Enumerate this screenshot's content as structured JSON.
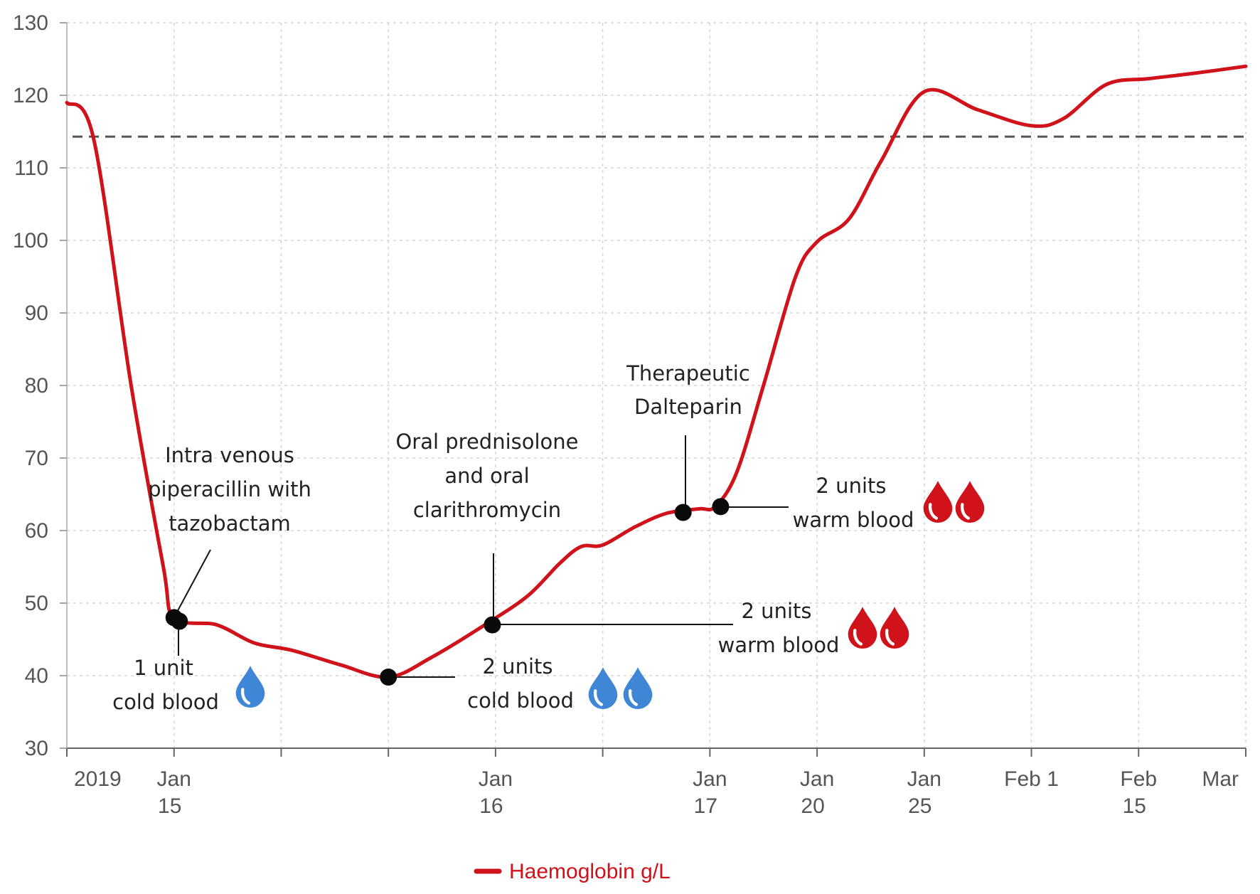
{
  "chart_data": {
    "type": "line",
    "title": "",
    "xlabel": "",
    "ylabel": "",
    "ylim": [
      30,
      130
    ],
    "y_ticks": [
      "130",
      "120",
      "110",
      "100",
      "90",
      "80",
      "70",
      "60",
      "50",
      "40",
      "30"
    ],
    "x_ticks": [
      {
        "line1": "2019",
        "line2": ""
      },
      {
        "line1": "Jan",
        "line2": "15"
      },
      {
        "line1": "",
        "line2": ""
      },
      {
        "line1": "",
        "line2": ""
      },
      {
        "line1": "Jan",
        "line2": "16"
      },
      {
        "line1": "",
        "line2": ""
      },
      {
        "line1": "Jan",
        "line2": "17"
      },
      {
        "line1": "Jan",
        "line2": "20"
      },
      {
        "line1": "Jan",
        "line2": "25"
      },
      {
        "line1": "Feb 1",
        "line2": ""
      },
      {
        "line1": "Feb",
        "line2": "15"
      },
      {
        "line1": "Mar",
        "line2": ""
      }
    ],
    "grid": true,
    "reference_line": {
      "value": 114.3,
      "style": "dashed"
    },
    "series": [
      {
        "name": "Haemoglobin g/L",
        "color": "#d0121b",
        "x": [
          0,
          0.25,
          0.6,
          0.9,
          1.0,
          1.4,
          1.75,
          2.1,
          2.55,
          3.0,
          3.4,
          3.9,
          4.3,
          4.6,
          4.8,
          5.0,
          5.3,
          5.6,
          5.9,
          6.05,
          6.25,
          6.5,
          6.8,
          7.0,
          7.3,
          7.6,
          8.0,
          8.5,
          9.0,
          9.3,
          9.7,
          10.1,
          10.5,
          11.0
        ],
        "values": [
          119,
          114,
          80,
          55,
          48,
          47,
          44.5,
          43.5,
          41.5,
          39.8,
          42.5,
          47,
          51,
          55.5,
          57.8,
          58,
          60.5,
          62.4,
          63,
          63.3,
          68,
          80,
          95,
          99.8,
          103,
          111,
          120.5,
          118,
          115.8,
          116.8,
          121.5,
          122.3,
          123,
          124
        ]
      }
    ],
    "markers": [
      {
        "x": 1.0,
        "y": 48
      },
      {
        "x": 1.05,
        "y": 47.5
      },
      {
        "x": 3.0,
        "y": 39.8
      },
      {
        "x": 3.97,
        "y": 47
      },
      {
        "x": 5.75,
        "y": 62.5
      },
      {
        "x": 6.1,
        "y": 63.3
      }
    ],
    "annotations": [
      {
        "lines": [
          "Intra venous",
          "piperacillin with",
          "tazobactam"
        ]
      },
      {
        "lines": [
          "Oral prednisolone",
          "and oral",
          "clarithromycin"
        ]
      },
      {
        "lines": [
          "Therapeutic",
          "Dalteparin"
        ]
      },
      {
        "lines": [
          "1 unit",
          "cold blood"
        ],
        "icon": "blue-blood-drop-icon",
        "count": 1
      },
      {
        "lines": [
          "2 units",
          "cold blood"
        ],
        "icon": "blue-blood-drop-icon",
        "count": 2
      },
      {
        "lines": [
          "2 units",
          "warm blood"
        ],
        "icon": "red-blood-drop-icon",
        "count": 2
      },
      {
        "lines": [
          "2 units",
          "warm blood"
        ],
        "icon": "red-blood-drop-icon",
        "count": 2
      }
    ],
    "legend": {
      "position": "bottom-center",
      "label": "Haemoglobin g/L"
    },
    "colors": {
      "line": "#d0121b",
      "cold_blood": "#3f86d6",
      "warm_blood": "#d0121b",
      "reference": "#555555"
    }
  }
}
